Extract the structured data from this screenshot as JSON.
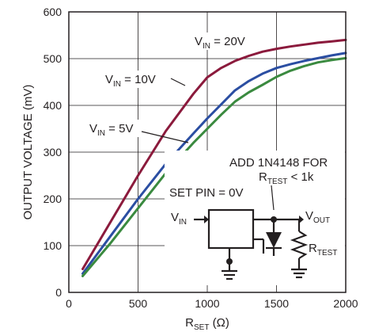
{
  "chart_data": {
    "type": "line",
    "title": "",
    "xlabel": {
      "main": "R",
      "sub": "SET",
      "tail": " (Ω)"
    },
    "ylabel": "OUTPUT VOLTAGE (mV)",
    "xlim": [
      0,
      2000
    ],
    "ylim": [
      0,
      600
    ],
    "xticks": [
      0,
      500,
      1000,
      1500,
      2000
    ],
    "yticks": [
      0,
      100,
      200,
      300,
      400,
      500,
      600
    ],
    "grid": true,
    "series": [
      {
        "label": {
          "main": "V",
          "sub": "IN",
          "tail": " = 20V"
        },
        "color": "#8b1a3c",
        "x": [
          100,
          300,
          500,
          700,
          900,
          1000,
          1100,
          1200,
          1300,
          1400,
          1500,
          1600,
          1700,
          1800,
          1900,
          2000
        ],
        "y": [
          50,
          150,
          250,
          345,
          425,
          460,
          480,
          495,
          506,
          515,
          521,
          526,
          530,
          534,
          537,
          540
        ]
      },
      {
        "label": {
          "main": "V",
          "sub": "IN",
          "tail": " = 10V"
        },
        "color": "#2b4ea2",
        "x": [
          100,
          300,
          500,
          700,
          900,
          1000,
          1100,
          1200,
          1300,
          1400,
          1500,
          1600,
          1700,
          1800,
          1900,
          2000
        ],
        "y": [
          40,
          120,
          200,
          275,
          340,
          372,
          402,
          432,
          452,
          468,
          480,
          488,
          495,
          501,
          507,
          512
        ]
      },
      {
        "label": {
          "main": "V",
          "sub": "IN",
          "tail": " = 5V"
        },
        "color": "#3a8a3f",
        "x": [
          100,
          300,
          500,
          700,
          900,
          1000,
          1100,
          1200,
          1300,
          1400,
          1500,
          1600,
          1700,
          1800,
          1900,
          2000
        ],
        "y": [
          35,
          105,
          180,
          255,
          320,
          350,
          380,
          408,
          428,
          444,
          461,
          474,
          484,
          492,
          497,
          501
        ]
      }
    ],
    "annotations": {
      "add_note_line1": "ADD 1N4148 FOR",
      "add_note_line2": {
        "main": "R",
        "sub": "TEST",
        "tail": " < 1k"
      },
      "set_pin": "SET PIN = 0V",
      "vin": {
        "main": "V",
        "sub": "IN"
      },
      "vout": {
        "main": "V",
        "sub": "OUT"
      },
      "rtest": {
        "main": "R",
        "sub": "TEST"
      }
    }
  }
}
